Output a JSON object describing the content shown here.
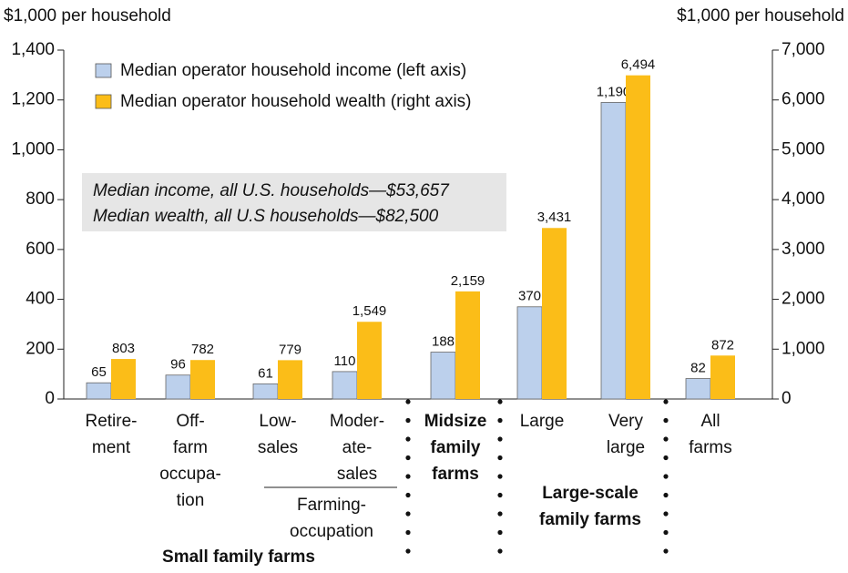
{
  "chart_data": {
    "type": "bar",
    "ylabel": "$1,000 per household",
    "y2label": "$1,000 per household",
    "categories": [
      [
        "Retire-",
        "ment"
      ],
      [
        "Off-",
        "farm",
        "occupa-",
        "tion"
      ],
      [
        "Low-",
        "sales"
      ],
      [
        "Moder-",
        "ate-",
        "sales"
      ],
      [
        "Midsize",
        "family",
        "farms"
      ],
      [
        "Large"
      ],
      [
        "Very",
        "large"
      ],
      [
        "All",
        "farms"
      ]
    ],
    "series": [
      {
        "name": "Median operator household income (left axis)",
        "color": "#bcd0ec",
        "axis": "y",
        "values": [
          65,
          96,
          61,
          110,
          188,
          370,
          1190,
          82
        ],
        "value_labels": [
          "65",
          "96",
          "61",
          "110",
          "188",
          "370",
          "1,190",
          "82"
        ]
      },
      {
        "name": "Median operator household wealth (right axis)",
        "color": "#fbbd18",
        "axis": "y2",
        "values": [
          803,
          782,
          779,
          1549,
          2159,
          3431,
          6494,
          872
        ],
        "value_labels": [
          "803",
          "782",
          "779",
          "1,549",
          "2,159",
          "3,431",
          "6,494",
          "872"
        ]
      }
    ],
    "ylim": [
      0,
      1400
    ],
    "yticks": [
      0,
      200,
      400,
      600,
      800,
      {
        "value": 1000,
        "label": "1,000"
      },
      {
        "value": 1200,
        "label": "1,200"
      },
      {
        "value": 1400,
        "label": "1,400"
      }
    ],
    "y2lim": [
      0,
      7000
    ],
    "y2ticks": [
      0,
      {
        "value": 1000,
        "label": "1,000"
      },
      {
        "value": 2000,
        "label": "2,000"
      },
      {
        "value": 3000,
        "label": "3,000"
      },
      {
        "value": 4000,
        "label": "4,000"
      },
      {
        "value": 5000,
        "label": "5,000"
      },
      {
        "value": 6000,
        "label": "6,000"
      },
      {
        "value": 7000,
        "label": "7,000"
      }
    ],
    "annotations": [
      "Median income, all U.S. households—$53,657",
      "Median wealth, all U.S households—$82,500"
    ],
    "group_labels": [
      [
        "Farming-",
        "occupation"
      ],
      [
        "Small family farms"
      ],
      [
        "Large-scale",
        "family farms"
      ]
    ],
    "legend": "upper left",
    "grid": false
  }
}
